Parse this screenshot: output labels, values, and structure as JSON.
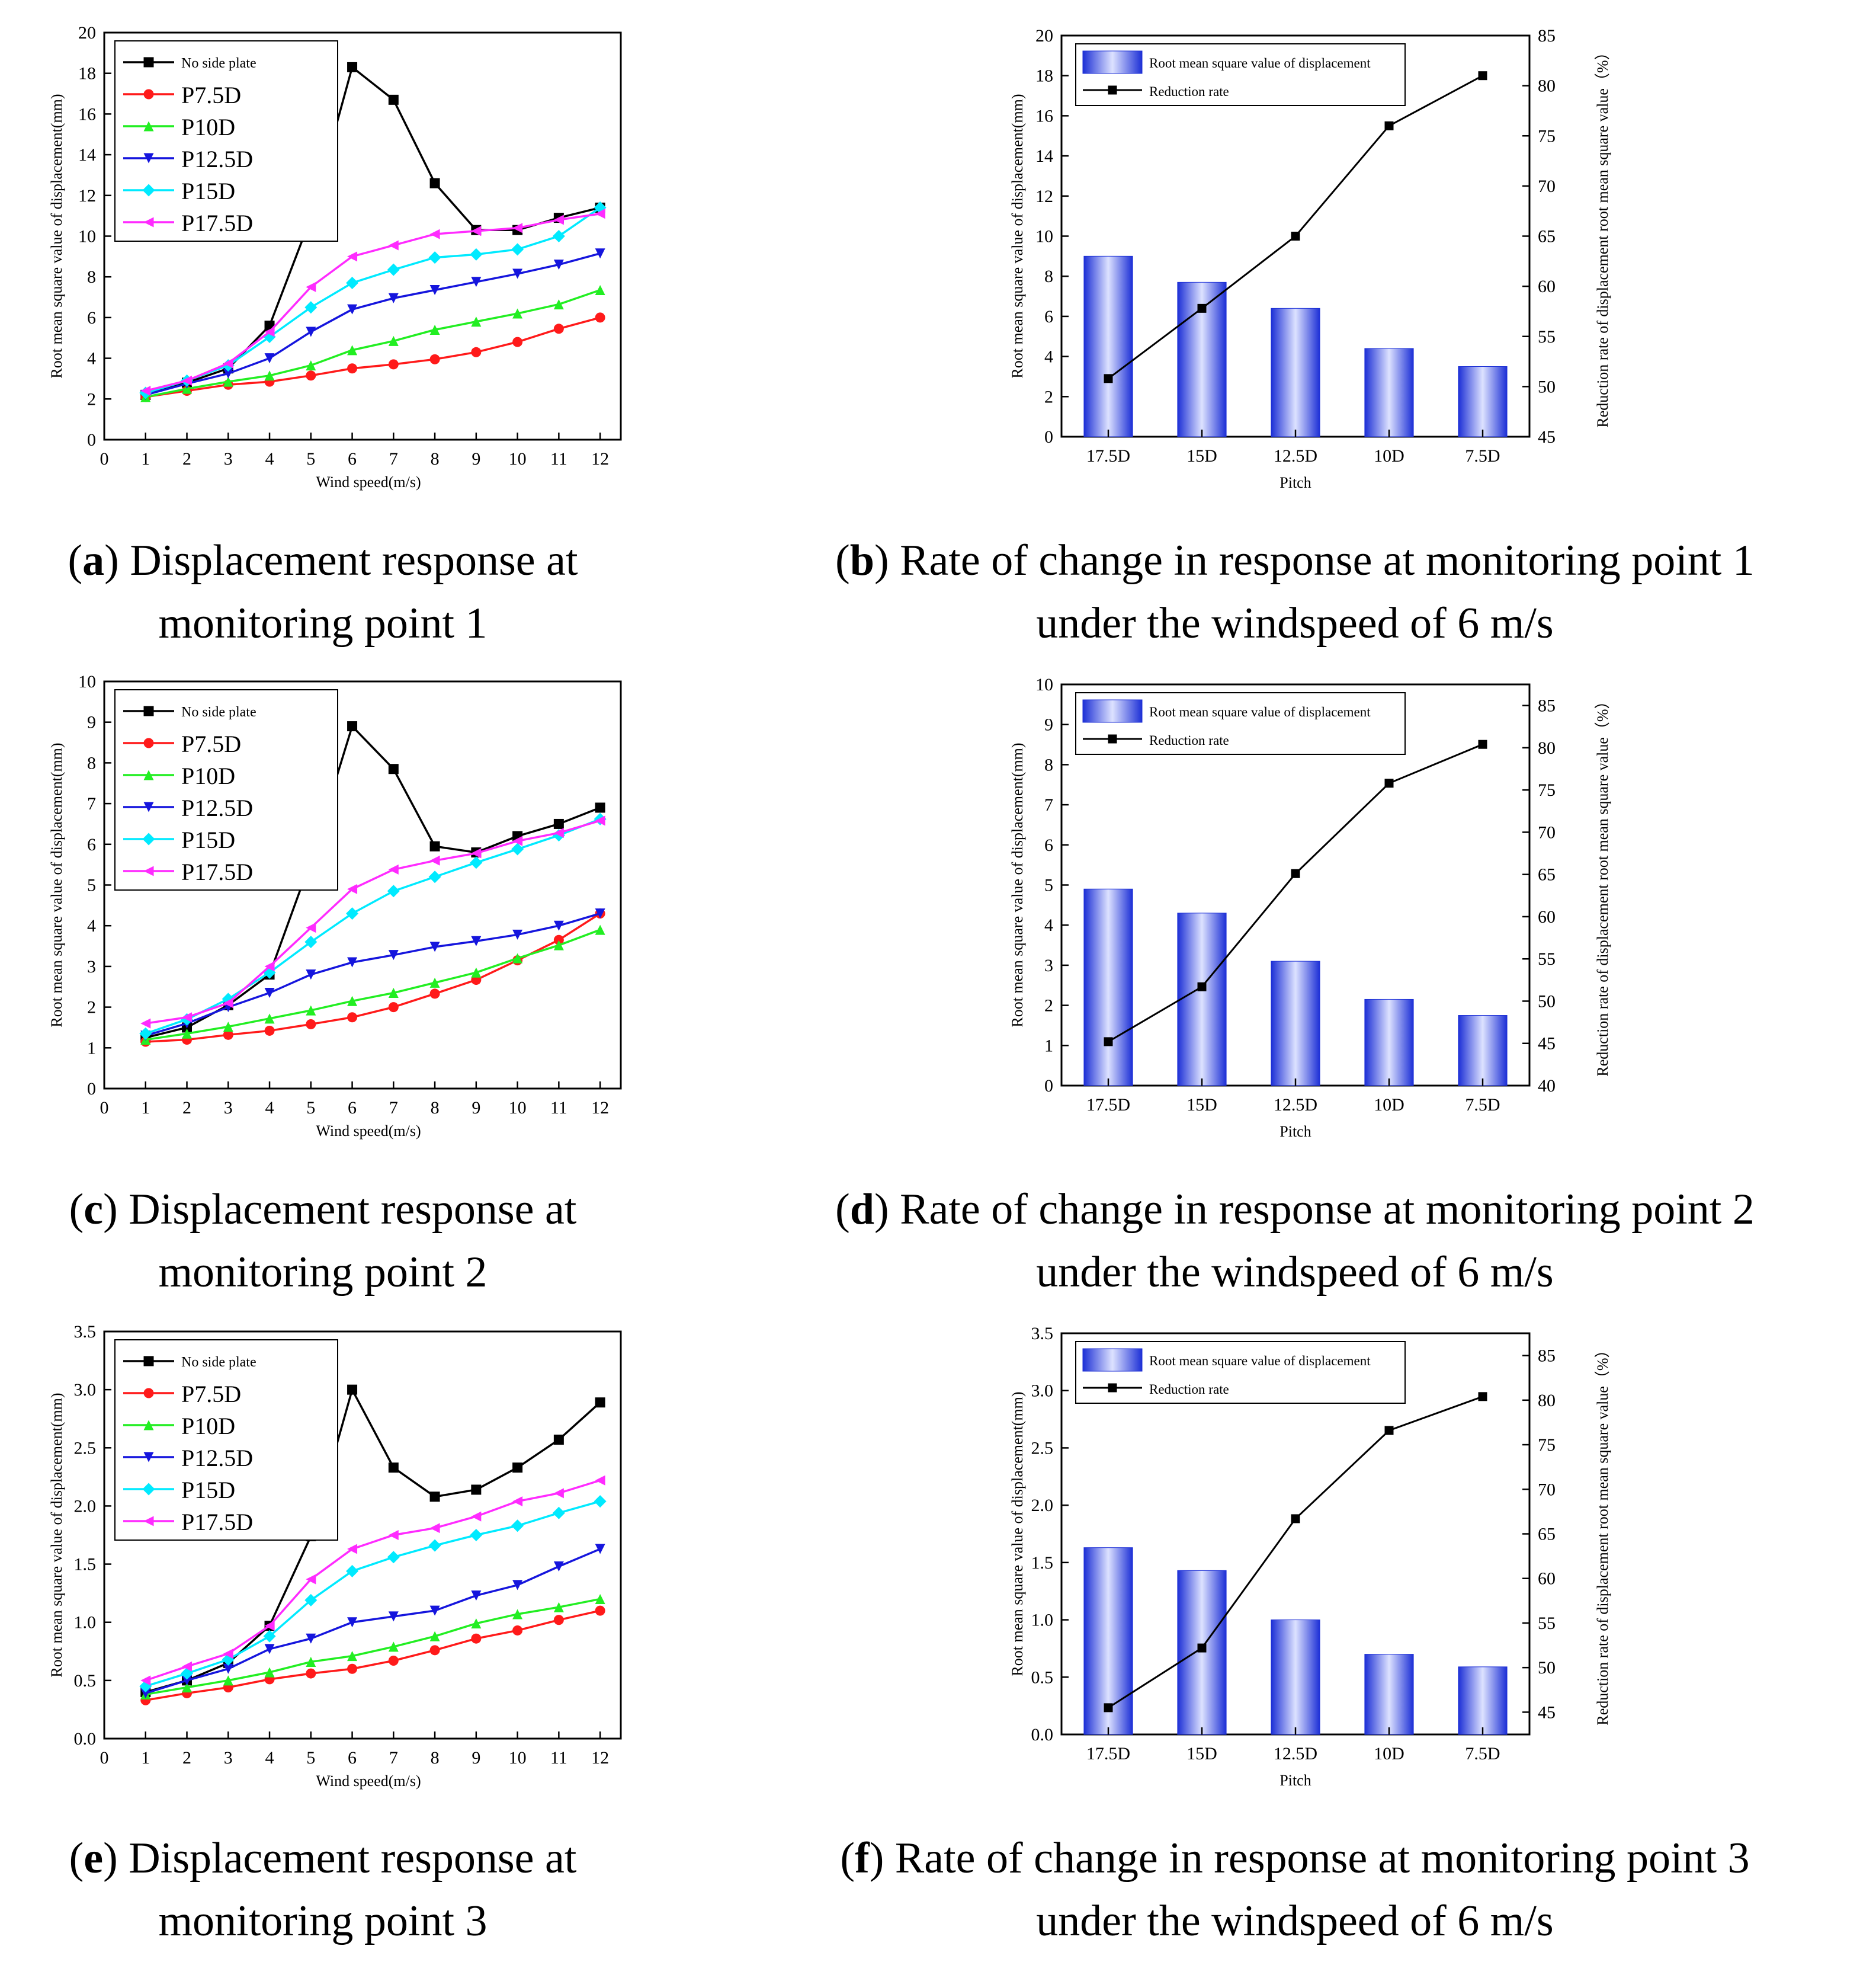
{
  "line_legend_labels": [
    "No side plate",
    "P7.5D",
    "P10D",
    "P12.5D",
    "P15D",
    "P17.5D"
  ],
  "bar_legend_labels": [
    "Root mean square value of displacement",
    "Reduction rate"
  ],
  "colors": {
    "No side plate": "#000000",
    "P7.5D": "#ff1a1a",
    "P10D": "#22ee22",
    "P12.5D": "#1515dd",
    "P15D": "#00eaff",
    "P17.5D": "#ff2bff",
    "bar_edge": "#1c2fd6",
    "bar_light": "#dde2ff"
  },
  "chart_data": [
    {
      "panel": "a",
      "type": "line",
      "xlabel": "Wind speed(m/s)",
      "ylabel": "Root mean square value of displacement(mm)",
      "x": [
        1,
        2,
        3,
        4,
        5,
        6,
        7,
        8,
        9,
        10,
        11,
        12
      ],
      "xticks": [
        "0",
        "1",
        "2",
        "3",
        "4",
        "5",
        "6",
        "7",
        "8",
        "9",
        "10",
        "11",
        "12"
      ],
      "xlim": [
        0,
        12.5
      ],
      "ylim": [
        0,
        20
      ],
      "yticks": [
        "0",
        "2",
        "4",
        "6",
        "8",
        "10",
        "12",
        "14",
        "16",
        "18",
        "20"
      ],
      "series": [
        {
          "name": "No side plate",
          "marker": "square",
          "values": [
            2.2,
            2.8,
            3.5,
            5.6,
            10.9,
            18.3,
            16.7,
            12.6,
            10.3,
            10.3,
            10.9,
            11.4
          ]
        },
        {
          "name": "P7.5D",
          "marker": "circle",
          "values": [
            2.1,
            2.4,
            2.7,
            2.85,
            3.15,
            3.5,
            3.7,
            3.95,
            4.3,
            4.8,
            5.45,
            6.0
          ]
        },
        {
          "name": "P10D",
          "marker": "triangle-up",
          "values": [
            2.1,
            2.5,
            2.85,
            3.15,
            3.65,
            4.4,
            4.85,
            5.4,
            5.8,
            6.2,
            6.65,
            7.35
          ]
        },
        {
          "name": "P12.5D",
          "marker": "triangle-down",
          "values": [
            2.2,
            2.75,
            3.25,
            4.0,
            5.3,
            6.4,
            6.95,
            7.35,
            7.75,
            8.15,
            8.6,
            9.15
          ]
        },
        {
          "name": "P15D",
          "marker": "diamond",
          "values": [
            2.3,
            2.9,
            3.65,
            5.05,
            6.5,
            7.7,
            8.35,
            8.95,
            9.1,
            9.35,
            10.0,
            11.4
          ]
        },
        {
          "name": "P17.5D",
          "marker": "triangle-left",
          "values": [
            2.4,
            2.9,
            3.75,
            5.3,
            7.5,
            9.0,
            9.55,
            10.1,
            10.25,
            10.4,
            10.8,
            11.1
          ]
        }
      ]
    },
    {
      "panel": "b",
      "type": "bar",
      "xlabel": "Pitch",
      "ylabel": "Root mean square value of displacement(mm)",
      "y2label": "Reduction rate of displacement root mean square value（%）",
      "categories": [
        "17.5D",
        "15D",
        "12.5D",
        "10D",
        "7.5D"
      ],
      "ylim": [
        0,
        20
      ],
      "yticks": [
        "0",
        "2",
        "4",
        "6",
        "8",
        "10",
        "12",
        "14",
        "16",
        "18",
        "20"
      ],
      "y2lim": [
        45,
        85
      ],
      "y2ticks": [
        "45",
        "50",
        "55",
        "60",
        "65",
        "70",
        "75",
        "80",
        "85"
      ],
      "series": [
        {
          "name": "Root mean square value of displacement",
          "values": [
            9.0,
            7.7,
            6.4,
            4.4,
            3.5
          ]
        },
        {
          "name": "Reduction rate",
          "axis": "right",
          "values": [
            50.8,
            57.8,
            65.0,
            76.0,
            81.0
          ]
        }
      ]
    },
    {
      "panel": "c",
      "type": "line",
      "xlabel": "Wind speed(m/s)",
      "ylabel": "Root mean square value of displacement(mm)",
      "x": [
        1,
        2,
        3,
        4,
        5,
        6,
        7,
        8,
        9,
        10,
        11,
        12
      ],
      "xticks": [
        "0",
        "1",
        "2",
        "3",
        "4",
        "5",
        "6",
        "7",
        "8",
        "9",
        "10",
        "11",
        "12"
      ],
      "xlim": [
        0,
        12.5
      ],
      "ylim": [
        0,
        10
      ],
      "yticks": [
        "0",
        "1",
        "2",
        "3",
        "4",
        "5",
        "6",
        "7",
        "8",
        "9",
        "10"
      ],
      "series": [
        {
          "name": "No side plate",
          "marker": "square",
          "values": [
            1.25,
            1.5,
            2.05,
            2.8,
            5.6,
            8.9,
            7.85,
            5.95,
            5.8,
            6.2,
            6.5,
            6.9
          ]
        },
        {
          "name": "P7.5D",
          "marker": "circle",
          "values": [
            1.15,
            1.2,
            1.32,
            1.42,
            1.58,
            1.75,
            2.0,
            2.33,
            2.67,
            3.15,
            3.65,
            4.3
          ]
        },
        {
          "name": "P10D",
          "marker": "triangle-up",
          "values": [
            1.2,
            1.35,
            1.52,
            1.72,
            1.92,
            2.15,
            2.35,
            2.6,
            2.85,
            3.2,
            3.52,
            3.9
          ]
        },
        {
          "name": "P12.5D",
          "marker": "triangle-down",
          "values": [
            1.3,
            1.6,
            2.0,
            2.35,
            2.8,
            3.1,
            3.28,
            3.48,
            3.62,
            3.78,
            4.0,
            4.3
          ]
        },
        {
          "name": "P15D",
          "marker": "diamond",
          "values": [
            1.35,
            1.7,
            2.2,
            2.85,
            3.6,
            4.3,
            4.85,
            5.2,
            5.55,
            5.88,
            6.22,
            6.62
          ]
        },
        {
          "name": "P17.5D",
          "marker": "triangle-left",
          "values": [
            1.6,
            1.75,
            2.1,
            3.0,
            3.95,
            4.9,
            5.38,
            5.6,
            5.78,
            6.08,
            6.28,
            6.58
          ]
        }
      ]
    },
    {
      "panel": "d",
      "type": "bar",
      "xlabel": "Pitch",
      "ylabel": "Root mean square value of displacement(mm)",
      "y2label": "Reduction rate of displacement root mean square value（%）",
      "categories": [
        "17.5D",
        "15D",
        "12.5D",
        "10D",
        "7.5D"
      ],
      "ylim": [
        0,
        10
      ],
      "yticks": [
        "0",
        "1",
        "2",
        "3",
        "4",
        "5",
        "6",
        "7",
        "8",
        "9",
        "10"
      ],
      "y2lim": [
        40,
        87.5
      ],
      "y2ticks": [
        "40",
        "45",
        "50",
        "55",
        "60",
        "65",
        "70",
        "75",
        "80",
        "85"
      ],
      "series": [
        {
          "name": "Root mean square value of displacement",
          "values": [
            4.9,
            4.3,
            3.1,
            2.15,
            1.75
          ]
        },
        {
          "name": "Reduction rate",
          "axis": "right",
          "values": [
            45.2,
            51.7,
            65.1,
            75.8,
            80.4
          ]
        }
      ]
    },
    {
      "panel": "e",
      "type": "line",
      "xlabel": "Wind speed(m/s)",
      "ylabel": "Root mean square value of displacement(mm)",
      "x": [
        1,
        2,
        3,
        4,
        5,
        6,
        7,
        8,
        9,
        10,
        11,
        12
      ],
      "xticks": [
        "0",
        "1",
        "2",
        "3",
        "4",
        "5",
        "6",
        "7",
        "8",
        "9",
        "10",
        "11",
        "12"
      ],
      "xlim": [
        0,
        12.5
      ],
      "ylim": [
        0,
        3.5
      ],
      "yticks": [
        "0.0",
        "0.5",
        "1.0",
        "1.5",
        "2.0",
        "2.5",
        "3.0",
        "3.5"
      ],
      "series": [
        {
          "name": "No side plate",
          "marker": "square",
          "values": [
            0.4,
            0.5,
            0.65,
            0.97,
            1.74,
            3.0,
            2.33,
            2.08,
            2.14,
            2.33,
            2.57,
            2.89
          ]
        },
        {
          "name": "P7.5D",
          "marker": "circle",
          "values": [
            0.33,
            0.39,
            0.44,
            0.51,
            0.56,
            0.6,
            0.67,
            0.76,
            0.86,
            0.93,
            1.02,
            1.1
          ]
        },
        {
          "name": "P10D",
          "marker": "triangle-up",
          "values": [
            0.38,
            0.44,
            0.5,
            0.57,
            0.66,
            0.71,
            0.79,
            0.88,
            0.99,
            1.07,
            1.13,
            1.2
          ]
        },
        {
          "name": "P12.5D",
          "marker": "triangle-down",
          "values": [
            0.39,
            0.5,
            0.6,
            0.77,
            0.86,
            1.0,
            1.05,
            1.1,
            1.23,
            1.32,
            1.48,
            1.63
          ]
        },
        {
          "name": "P15D",
          "marker": "diamond",
          "values": [
            0.45,
            0.56,
            0.68,
            0.88,
            1.19,
            1.44,
            1.56,
            1.66,
            1.75,
            1.83,
            1.94,
            2.04
          ]
        },
        {
          "name": "P17.5D",
          "marker": "triangle-left",
          "values": [
            0.5,
            0.62,
            0.73,
            0.97,
            1.37,
            1.63,
            1.75,
            1.81,
            1.91,
            2.04,
            2.11,
            2.22
          ]
        }
      ]
    },
    {
      "panel": "f",
      "type": "bar",
      "xlabel": "Pitch",
      "ylabel": "Root mean square value of displacement(mm)",
      "y2label": "Reduction rate of displacement root mean square value（%）",
      "categories": [
        "17.5D",
        "15D",
        "12.5D",
        "10D",
        "7.5D"
      ],
      "ylim": [
        0,
        3.5
      ],
      "yticks": [
        "0.0",
        "0.5",
        "1.0",
        "1.5",
        "2.0",
        "2.5",
        "3.0",
        "3.5"
      ],
      "y2lim": [
        42.5,
        87.5
      ],
      "y2ticks": [
        "45",
        "50",
        "55",
        "60",
        "65",
        "70",
        "75",
        "80",
        "85"
      ],
      "series": [
        {
          "name": "Root mean square value of displacement",
          "values": [
            1.63,
            1.43,
            1.0,
            0.7,
            0.59
          ]
        },
        {
          "name": "Reduction rate",
          "axis": "right",
          "values": [
            45.5,
            52.2,
            66.7,
            76.6,
            80.4
          ]
        }
      ]
    }
  ],
  "captions": [
    {
      "letter": "a",
      "lines": [
        "Displacement response at",
        "monitoring point 1"
      ]
    },
    {
      "letter": "b",
      "lines": [
        "Rate of change in response at monitoring point 1",
        "under the windspeed of 6 m/s"
      ]
    },
    {
      "letter": "c",
      "lines": [
        "Displacement response at",
        "monitoring point 2"
      ]
    },
    {
      "letter": "d",
      "lines": [
        "Rate of change in response at monitoring point 2",
        "under the windspeed of 6 m/s"
      ]
    },
    {
      "letter": "e",
      "lines": [
        "Displacement response at",
        "monitoring point 3"
      ]
    },
    {
      "letter": "f",
      "lines": [
        "Rate of change in response at monitoring point 3",
        "under the windspeed of 6 m/s"
      ]
    }
  ]
}
